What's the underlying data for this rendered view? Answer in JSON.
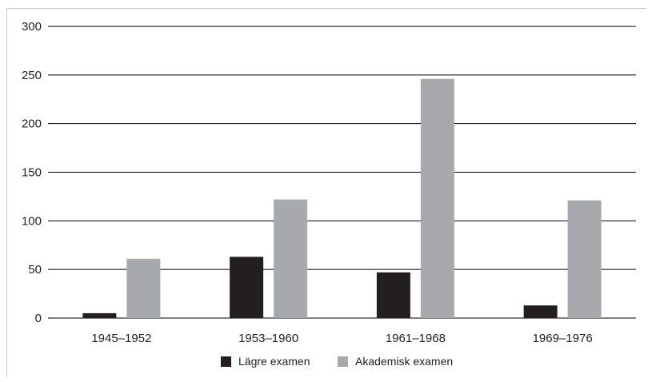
{
  "chart_data": {
    "type": "bar",
    "categories": [
      "1945–1952",
      "1953–1960",
      "1961–1968",
      "1969–1976"
    ],
    "series": [
      {
        "name": "Lägre examen",
        "values": [
          5,
          63,
          47,
          13
        ],
        "color": "#231f20"
      },
      {
        "name": "Akademisk examen",
        "values": [
          61,
          122,
          246,
          121
        ],
        "color": "#a7a9ac"
      }
    ],
    "yticks": [
      0,
      50,
      100,
      150,
      200,
      250,
      300
    ],
    "ylim": [
      0,
      300
    ],
    "grid": true,
    "legend_position": "bottom"
  }
}
